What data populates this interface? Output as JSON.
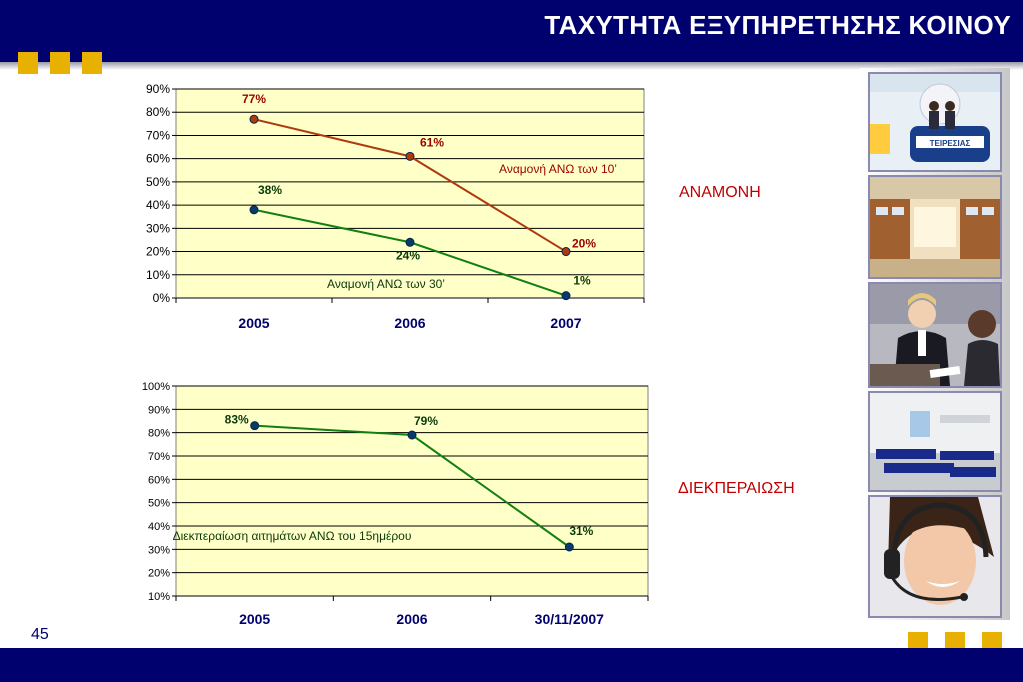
{
  "slide": {
    "title": "ΤΑΧΥΤΗΤΑ ΕΞΥΠΗΡΕΤΗΣΗΣ ΚΟΙΝΟΥ",
    "page_number": "45",
    "brand_color": "#00006e",
    "accent_color": "#e8b000"
  },
  "labels": {
    "wait": "ΑΝΑΜΟΝΗ",
    "processing": "ΔΙΕΚΠΕΡΑΙΩΣΗ"
  },
  "photos": [
    {
      "icon": "reception-desk-photo",
      "sign": "ΤΕΙΡΕΣΙΑΣ"
    },
    {
      "icon": "service-counters-photo"
    },
    {
      "icon": "clerk-at-desk-photo"
    },
    {
      "icon": "waiting-room-chairs-photo"
    },
    {
      "icon": "call-center-agent-photo"
    }
  ],
  "chart_data": [
    {
      "type": "line",
      "categories": [
        "2005",
        "2006",
        "2007"
      ],
      "ylim": [
        0,
        90
      ],
      "yticks": [
        "0%",
        "10%",
        "20%",
        "30%",
        "40%",
        "50%",
        "60%",
        "70%",
        "80%",
        "90%"
      ],
      "plot_background": "#ffffc8",
      "grid": true,
      "series": [
        {
          "name": "Αναμονή ΑΝΩ των 10’",
          "values": [
            77,
            61,
            20
          ],
          "data_labels": [
            "77%",
            "61%",
            "20%"
          ],
          "color": "#b03a10",
          "name_color": "#9a0000"
        },
        {
          "name": "Αναμονή ΑΝΩ των 30’",
          "values": [
            38,
            24,
            1
          ],
          "data_labels": [
            "38%",
            "24%",
            "1%"
          ],
          "color": "#108010",
          "name_color": "#0a3a0a"
        }
      ]
    },
    {
      "type": "line",
      "categories": [
        "2005",
        "2006",
        "30/11/2007"
      ],
      "ylim": [
        10,
        100
      ],
      "yticks": [
        "10%",
        "20%",
        "30%",
        "40%",
        "50%",
        "60%",
        "70%",
        "80%",
        "90%",
        "100%"
      ],
      "plot_background": "#ffffc8",
      "grid": true,
      "series": [
        {
          "name": "Διεκπεραίωση αιτημάτων ΑΝΩ του 15ημέρου",
          "values": [
            83,
            79,
            31
          ],
          "data_labels": [
            "83%",
            "79%",
            "31%"
          ],
          "color": "#108010",
          "name_color": "#0a3a0a"
        }
      ]
    }
  ]
}
